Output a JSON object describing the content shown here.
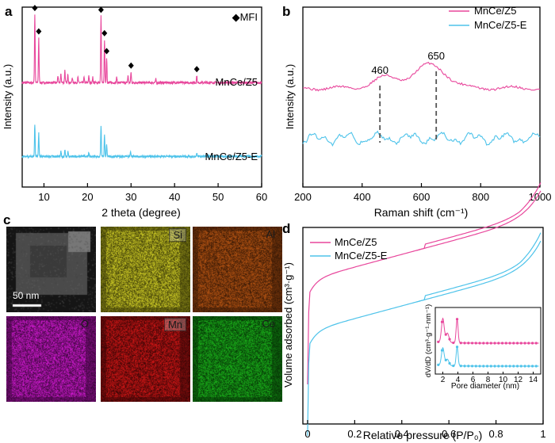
{
  "panels": {
    "a": {
      "letter": "a"
    },
    "b": {
      "letter": "b"
    },
    "c": {
      "letter": "c"
    },
    "d": {
      "letter": "d"
    }
  },
  "micrographs": {
    "scalebar": "50 nm",
    "maps": [
      {
        "key": "si",
        "label": "Si",
        "color": "#e2df2a",
        "base": "#3d3c08"
      },
      {
        "key": "al",
        "label": "Al",
        "color": "#c25a14",
        "base": "#3a1a06"
      },
      {
        "key": "o",
        "label": "O",
        "color": "#e21de2",
        "base": "#3c063c"
      },
      {
        "key": "mn",
        "label": "Mn",
        "color": "#e01818",
        "base": "#3a0606"
      },
      {
        "key": "ce",
        "label": "Ce",
        "color": "#1ec21e",
        "base": "#063506"
      }
    ]
  },
  "colors": {
    "pink": "#e8479c",
    "blue": "#4ec3ea",
    "marker": "#000000",
    "dash": "#555555"
  },
  "chart_data": [
    {
      "id": "a",
      "type": "line",
      "title": "",
      "xlabel": "2 theta (degree)",
      "ylabel": "Intensity (a.u.)",
      "xlim": [
        5,
        60
      ],
      "xticks": [
        10,
        20,
        30,
        40,
        50,
        60
      ],
      "legend": "◆MFI",
      "series": [
        {
          "name": "MnCe/Z5",
          "color": "#e8479c",
          "baseline": 0.58,
          "noise": 0.012,
          "peaks": [
            [
              7.9,
              0.38
            ],
            [
              8.8,
              0.25
            ],
            [
              13.2,
              0.04
            ],
            [
              13.9,
              0.05
            ],
            [
              14.8,
              0.07
            ],
            [
              15.5,
              0.05
            ],
            [
              16.5,
              0.03
            ],
            [
              17.8,
              0.03
            ],
            [
              19.2,
              0.03
            ],
            [
              20.3,
              0.04
            ],
            [
              21.2,
              0.03
            ],
            [
              23.1,
              0.37
            ],
            [
              23.9,
              0.24
            ],
            [
              24.4,
              0.14
            ],
            [
              26.7,
              0.03
            ],
            [
              29.3,
              0.04
            ],
            [
              30.0,
              0.06
            ],
            [
              35.7,
              0.02
            ],
            [
              45.1,
              0.04
            ]
          ]
        },
        {
          "name": "MnCe/Z5-E",
          "color": "#4ec3ea",
          "baseline": 0.17,
          "noise": 0.012,
          "peaks": [
            [
              7.9,
              0.18
            ],
            [
              8.8,
              0.13
            ],
            [
              13.9,
              0.03
            ],
            [
              14.8,
              0.04
            ],
            [
              15.5,
              0.03
            ],
            [
              20.3,
              0.02
            ],
            [
              23.1,
              0.17
            ],
            [
              23.9,
              0.12
            ],
            [
              24.4,
              0.07
            ],
            [
              29.9,
              0.03
            ],
            [
              45.1,
              0.02
            ]
          ]
        }
      ],
      "markers": [
        7.9,
        8.8,
        23.1,
        23.9,
        24.4,
        30.0,
        45.1
      ]
    },
    {
      "id": "b",
      "type": "line",
      "title": "",
      "xlabel": "Raman shift (cm⁻¹)",
      "ylabel": "Intensity (a.u.)",
      "xlim": [
        200,
        1000
      ],
      "xticks": [
        200,
        400,
        600,
        800,
        1000
      ],
      "annotations": [
        {
          "x": 460,
          "label": "460"
        },
        {
          "x": 650,
          "label": "650"
        }
      ],
      "series": [
        {
          "name": "MnCe/Z5",
          "color": "#e8479c",
          "baseline": 0.55
        },
        {
          "name": "MnCe/Z5-E",
          "color": "#4ec3ea",
          "baseline": 0.27
        }
      ]
    },
    {
      "id": "d",
      "type": "line",
      "title": "",
      "xlabel": "Relative pressure (P/P₀)",
      "ylabel": "Volume adsorbed (cm³·g⁻¹)",
      "xlim": [
        -0.02,
        1.0
      ],
      "xticks": [
        0.0,
        0.2,
        0.4,
        0.6,
        0.8,
        1.0
      ],
      "series": [
        {
          "name": "MnCe/Z5",
          "color": "#e8479c"
        },
        {
          "name": "MnCe/Z5-E",
          "color": "#4ec3ea"
        }
      ],
      "inset": {
        "xlabel": "Pore diameter (nm)",
        "ylabel": "dV/dD (cm³·g⁻¹·nm⁻¹)",
        "xlim": [
          1,
          15
        ],
        "xticks": [
          2,
          4,
          6,
          8,
          10,
          12,
          14
        ]
      }
    }
  ]
}
